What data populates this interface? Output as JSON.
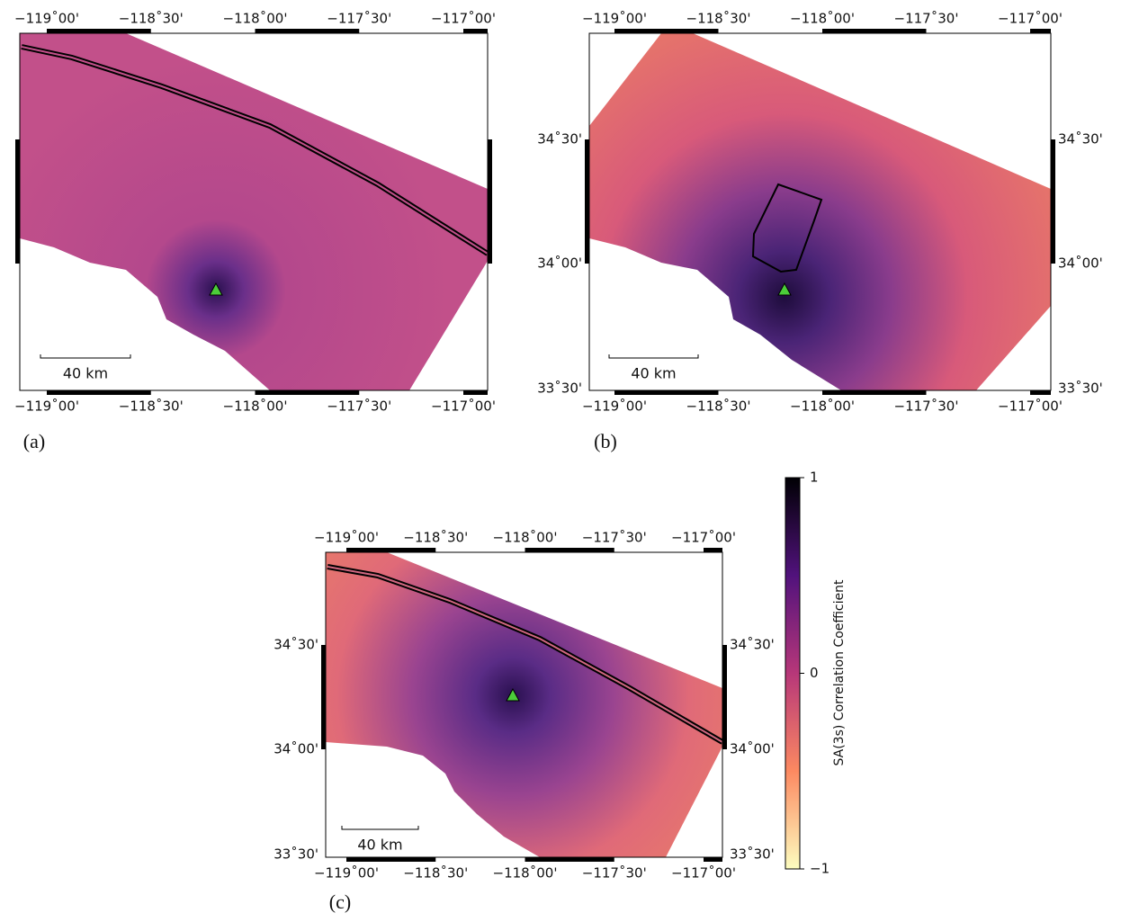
{
  "panels": [
    {
      "label": "(a)",
      "xticks": [
        "−119˚00'",
        "−118˚30'",
        "−118˚00'",
        "−117˚30'",
        "−117˚00'"
      ],
      "scalebar": "40 km"
    },
    {
      "label": "(b)",
      "xticks": [
        "−119˚00'",
        "−118˚30'",
        "−118˚00'",
        "−117˚30'",
        "−117˚00'"
      ],
      "yticks": [
        "34˚30'",
        "34˚00'",
        "33˚30'"
      ],
      "scalebar": "40 km"
    },
    {
      "label": "(c)",
      "xticks": [
        "−119˚00'",
        "−118˚30'",
        "−118˚00'",
        "−117˚30'",
        "−117˚00'"
      ],
      "yticks": [
        "34˚30'",
        "34˚00'",
        "33˚30'"
      ],
      "scalebar": "40 km"
    }
  ],
  "colorbar": {
    "label": "SA(3s) Correlation Coefficient",
    "ticks": [
      1,
      0,
      {
        "value": -1,
        "label": "−1"
      }
    ]
  }
}
